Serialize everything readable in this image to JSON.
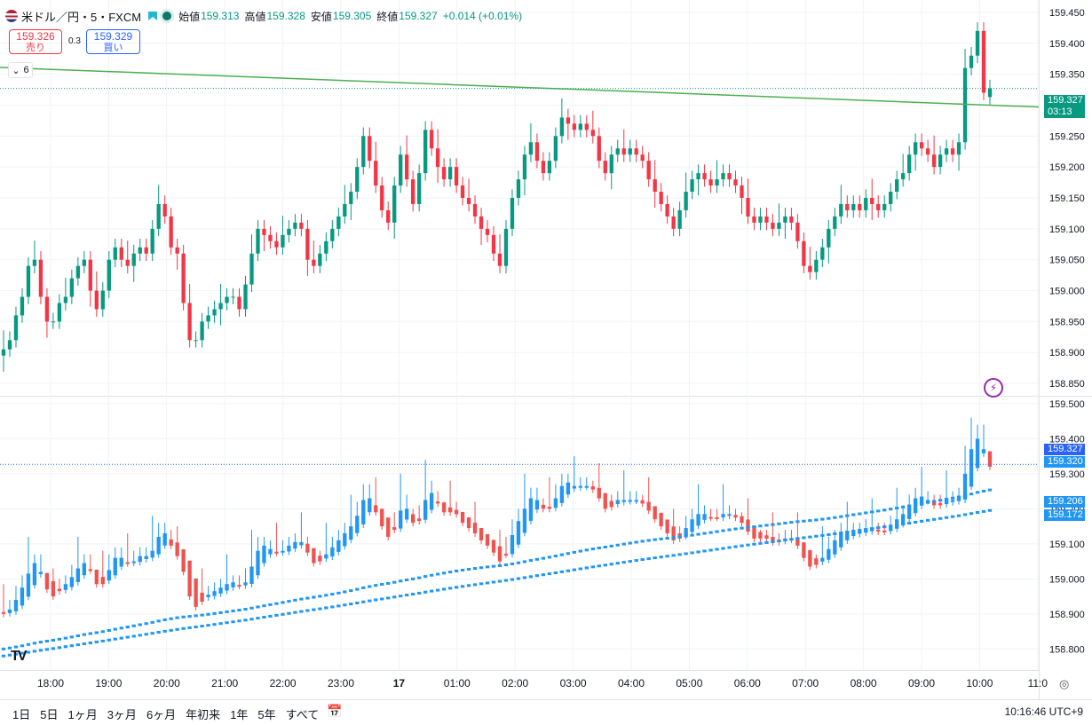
{
  "header": {
    "symbol": "米ドル／円・5・FXCM",
    "open_label": "始値",
    "open": "159.313",
    "high_label": "高値",
    "high": "159.328",
    "low_label": "安値",
    "low": "159.305",
    "close_label": "終値",
    "close": "159.327",
    "change": "+0.014 (+0.01%)"
  },
  "trade": {
    "sell_price": "159.326",
    "sell_label": "売り",
    "spread": "0.3",
    "buy_price": "159.329",
    "buy_label": "買い"
  },
  "indicators_count": "6",
  "time_ranges": [
    "1日",
    "5日",
    "1ヶ月",
    "3ヶ月",
    "6ヶ月",
    "年初来",
    "1年",
    "5年",
    "すべて"
  ],
  "clock": "10:16:46 UTC+9",
  "logo_text": "TV",
  "chart_data": {
    "type": "candlestick",
    "interval": "5m",
    "x_ticks": [
      "18:00",
      "19:00",
      "20:00",
      "21:00",
      "22:00",
      "23:00",
      "17",
      "01:00",
      "02:00",
      "03:00",
      "04:00",
      "05:00",
      "06:00",
      "07:00",
      "08:00",
      "09:00",
      "10:00",
      "11:0"
    ],
    "upper_pane": {
      "y_ticks": [
        "159.450",
        "159.400",
        "159.350",
        "159.300",
        "159.250",
        "159.200",
        "159.150",
        "159.100",
        "159.050",
        "159.000",
        "158.950",
        "158.900",
        "158.850"
      ],
      "ylim": [
        158.83,
        159.47
      ],
      "last_price": "159.327",
      "countdown": "03:13",
      "trendline": {
        "from": [
          0,
          159.361
        ],
        "to": [
          1,
          159.297
        ],
        "color": "#4caf50"
      }
    },
    "lower_pane": {
      "y_ticks": [
        "159.500",
        "159.400",
        "159.300",
        "159.200",
        "159.100",
        "159.000",
        "158.900",
        "158.800"
      ],
      "ylim": [
        158.74,
        159.52
      ],
      "labels": [
        "159.327",
        "159.320",
        "159.206",
        "159.172"
      ],
      "ma_fast": {
        "start": 158.8,
        "end": 159.206
      },
      "ma_slow": {
        "start": 158.78,
        "end": 159.172
      }
    },
    "colors": {
      "up": "#089981",
      "down": "#f23645",
      "ha_up": "#2196f3",
      "ha_down": "#ef5350",
      "grid": "#f0f3fa"
    },
    "close_series": [
      158.905,
      158.92,
      158.96,
      158.99,
      159.04,
      159.05,
      158.99,
      158.95,
      158.95,
      158.98,
      158.99,
      159.02,
      159.04,
      159.05,
      159.0,
      158.97,
      159.0,
      159.05,
      159.07,
      159.05,
      159.04,
      159.06,
      159.07,
      159.06,
      159.1,
      159.14,
      159.12,
      159.07,
      159.06,
      158.98,
      158.92,
      158.92,
      158.95,
      158.96,
      158.97,
      158.98,
      158.99,
      158.99,
      158.97,
      159.01,
      159.06,
      159.1,
      159.09,
      159.08,
      159.07,
      159.09,
      159.1,
      159.11,
      159.1,
      159.05,
      159.04,
      159.06,
      159.08,
      159.1,
      159.12,
      159.14,
      159.16,
      159.2,
      159.25,
      159.21,
      159.17,
      159.13,
      159.11,
      159.17,
      159.22,
      159.18,
      159.14,
      159.19,
      159.26,
      159.23,
      159.2,
      159.18,
      159.2,
      159.17,
      159.15,
      159.14,
      159.12,
      159.1,
      159.09,
      159.06,
      159.04,
      159.1,
      159.15,
      159.18,
      159.22,
      159.24,
      159.21,
      159.19,
      159.21,
      159.25,
      159.28,
      159.27,
      159.26,
      159.27,
      159.26,
      159.25,
      159.21,
      159.19,
      159.22,
      159.23,
      159.22,
      159.23,
      159.22,
      159.21,
      159.18,
      159.16,
      159.14,
      159.12,
      159.1,
      159.13,
      159.16,
      159.18,
      159.19,
      159.18,
      159.17,
      159.18,
      159.19,
      159.18,
      159.17,
      159.15,
      159.12,
      159.11,
      159.12,
      159.11,
      159.1,
      159.11,
      159.12,
      159.11,
      159.08,
      159.04,
      159.03,
      159.05,
      159.07,
      159.1,
      159.12,
      159.14,
      159.13,
      159.14,
      159.13,
      159.15,
      159.14,
      159.13,
      159.14,
      159.16,
      159.18,
      159.19,
      159.22,
      159.24,
      159.23,
      159.22,
      159.2,
      159.22,
      159.23,
      159.22,
      159.24,
      159.36,
      159.38,
      159.42,
      159.32,
      159.327
    ]
  }
}
